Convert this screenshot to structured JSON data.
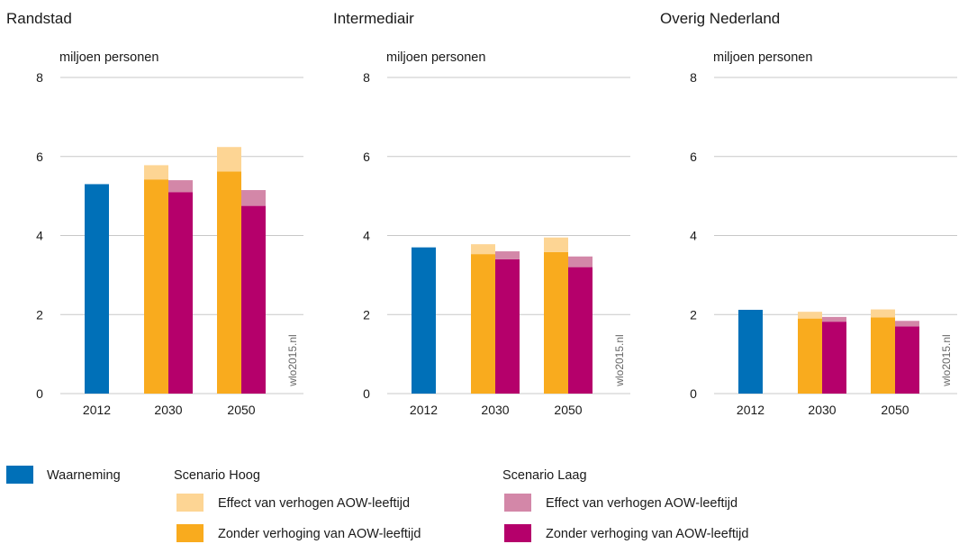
{
  "chart_data": [
    {
      "type": "bar",
      "title": "Randstad",
      "ylabel": "miljoen personen",
      "ylim": [
        0,
        8
      ],
      "yticks": [
        0,
        2,
        4,
        6,
        8
      ],
      "credit": "wlo2015.nl",
      "grid": true,
      "waarneming": {
        "category": "2012",
        "value": 5.3
      },
      "scenario_groups": [
        {
          "category": "2030",
          "hoog": {
            "zonder": 5.42,
            "effect": 0.36
          },
          "laag": {
            "zonder": 5.1,
            "effect": 0.3
          }
        },
        {
          "category": "2050",
          "hoog": {
            "zonder": 5.62,
            "effect": 0.62
          },
          "laag": {
            "zonder": 4.75,
            "effect": 0.4
          }
        }
      ]
    },
    {
      "type": "bar",
      "title": "Intermediair",
      "ylabel": "miljoen personen",
      "ylim": [
        0,
        8
      ],
      "yticks": [
        0,
        2,
        4,
        6,
        8
      ],
      "credit": "wlo2015.nl",
      "grid": true,
      "waarneming": {
        "category": "2012",
        "value": 3.7
      },
      "scenario_groups": [
        {
          "category": "2030",
          "hoog": {
            "zonder": 3.53,
            "effect": 0.25
          },
          "laag": {
            "zonder": 3.4,
            "effect": 0.2
          }
        },
        {
          "category": "2050",
          "hoog": {
            "zonder": 3.58,
            "effect": 0.37
          },
          "laag": {
            "zonder": 3.2,
            "effect": 0.27
          }
        }
      ]
    },
    {
      "type": "bar",
      "title": "Overig Nederland",
      "ylabel": "miljoen personen",
      "ylim": [
        0,
        8
      ],
      "yticks": [
        0,
        2,
        4,
        6,
        8
      ],
      "credit": "wlo2015.nl",
      "grid": true,
      "waarneming": {
        "category": "2012",
        "value": 2.12
      },
      "scenario_groups": [
        {
          "category": "2030",
          "hoog": {
            "zonder": 1.9,
            "effect": 0.17
          },
          "laag": {
            "zonder": 1.82,
            "effect": 0.12
          }
        },
        {
          "category": "2050",
          "hoog": {
            "zonder": 1.93,
            "effect": 0.2
          },
          "laag": {
            "zonder": 1.7,
            "effect": 0.14
          }
        }
      ]
    }
  ],
  "legend": {
    "waarneming": "Waarneming",
    "hoog_title": "Scenario Hoog",
    "laag_title": "Scenario Laag",
    "hoog_effect": "Effect van verhogen AOW-leeftijd",
    "hoog_zonder": "Zonder verhoging van AOW-leeftijd",
    "laag_effect": "Effect van verhogen AOW-leeftijd",
    "laag_zonder": "Zonder verhoging van AOW-leeftijd"
  },
  "colors": {
    "waarneming": "#0070b8",
    "hoog_zonder": "#f9ab1e",
    "hoog_effect": "#fdd594",
    "laag_zonder": "#b5006b",
    "laag_effect": "#d387a8"
  }
}
